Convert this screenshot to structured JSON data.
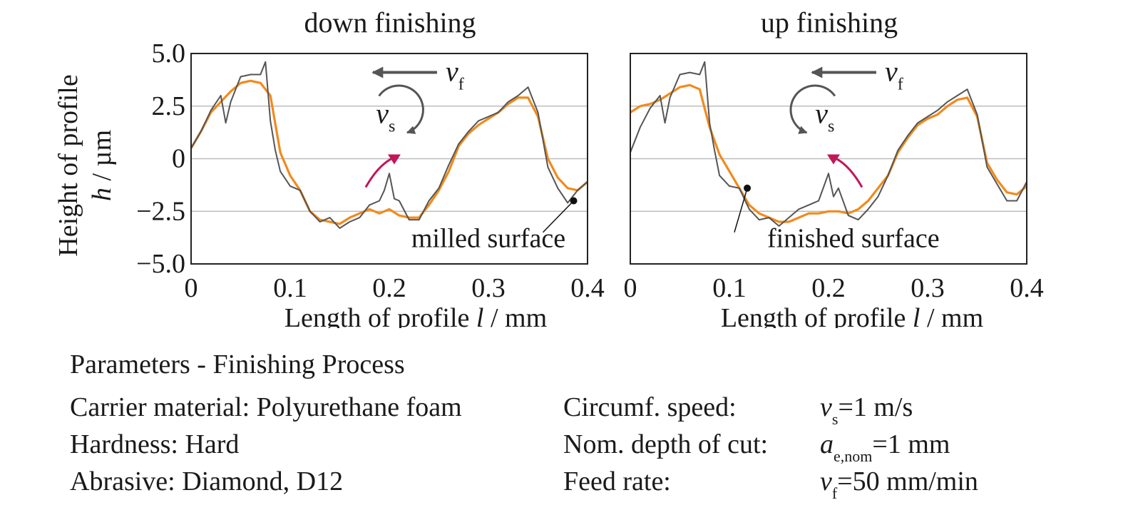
{
  "chart_data": [
    {
      "type": "line",
      "title": "down finishing",
      "xlabel": "Length of profile",
      "xlabel_symbol": "l",
      "xlabel_unit": "/ mm",
      "ylabel_line1": "Height of profile",
      "ylabel_symbol": "h",
      "ylabel_unit": "/ µm",
      "xlim": [
        0,
        0.4
      ],
      "ylim": [
        -5.0,
        5.0
      ],
      "xticks": [
        "0",
        "0.1",
        "0.2",
        "0.3",
        "0.4"
      ],
      "yticks": [
        "5.0",
        "2.5",
        "0",
        "−2.5",
        "−5.0"
      ],
      "grid": "horizontal",
      "feed_symbol": "v",
      "feed_sub": "f",
      "speed_symbol": "v",
      "speed_sub": "s",
      "rotation": "clockwise",
      "annotation": "milled surface",
      "annotation_point": [
        0.386,
        -2.0
      ],
      "series": [
        {
          "color": "#555555",
          "x": [
            0,
            0.01,
            0.02,
            0.03,
            0.035,
            0.04,
            0.05,
            0.06,
            0.07,
            0.075,
            0.08,
            0.085,
            0.09,
            0.1,
            0.11,
            0.12,
            0.13,
            0.14,
            0.15,
            0.16,
            0.17,
            0.18,
            0.19,
            0.195,
            0.2,
            0.205,
            0.21,
            0.22,
            0.23,
            0.24,
            0.25,
            0.26,
            0.27,
            0.28,
            0.29,
            0.3,
            0.31,
            0.32,
            0.33,
            0.34,
            0.35,
            0.36,
            0.37,
            0.38,
            0.39,
            0.4
          ],
          "y": [
            0.5,
            1.3,
            2.3,
            3.0,
            1.7,
            2.7,
            3.9,
            4.0,
            4.0,
            4.6,
            1.8,
            0.4,
            -0.6,
            -1.3,
            -1.5,
            -2.5,
            -3.0,
            -2.8,
            -3.3,
            -3.0,
            -2.8,
            -2.2,
            -2.0,
            -1.5,
            -0.7,
            -1.9,
            -2.0,
            -2.9,
            -2.9,
            -2.0,
            -1.4,
            -0.3,
            0.7,
            1.3,
            1.8,
            2.0,
            2.2,
            2.7,
            3.0,
            3.4,
            2.2,
            -0.4,
            -1.4,
            -2.1,
            -1.5,
            -1.1
          ]
        },
        {
          "color": "#f28a1c",
          "x": [
            0,
            0.01,
            0.02,
            0.03,
            0.04,
            0.05,
            0.06,
            0.07,
            0.08,
            0.09,
            0.1,
            0.11,
            0.12,
            0.13,
            0.14,
            0.15,
            0.16,
            0.17,
            0.18,
            0.19,
            0.2,
            0.21,
            0.22,
            0.23,
            0.24,
            0.25,
            0.26,
            0.27,
            0.28,
            0.29,
            0.3,
            0.31,
            0.32,
            0.33,
            0.34,
            0.35,
            0.36,
            0.37,
            0.38,
            0.39,
            0.4
          ],
          "y": [
            0.5,
            1.3,
            2.2,
            2.7,
            3.2,
            3.6,
            3.7,
            3.6,
            3.0,
            0.3,
            -0.8,
            -1.5,
            -2.5,
            -2.9,
            -3.0,
            -3.1,
            -2.8,
            -2.6,
            -2.4,
            -2.6,
            -2.4,
            -2.7,
            -2.8,
            -2.8,
            -2.2,
            -1.5,
            -0.6,
            0.6,
            1.2,
            1.6,
            1.9,
            2.2,
            2.6,
            2.9,
            2.9,
            2.0,
            0.0,
            -0.9,
            -1.4,
            -1.5,
            -1.1
          ]
        }
      ]
    },
    {
      "type": "line",
      "title": "up finishing",
      "xlabel": "Length of profile",
      "xlabel_symbol": "l",
      "xlabel_unit": "/ mm",
      "xlim": [
        0,
        0.4
      ],
      "ylim": [
        -5.0,
        5.0
      ],
      "xticks": [
        "0",
        "0.1",
        "0.2",
        "0.3",
        "0.4"
      ],
      "grid": "horizontal",
      "feed_symbol": "v",
      "feed_sub": "f",
      "speed_symbol": "v",
      "speed_sub": "s",
      "rotation": "counter-clockwise",
      "annotation": "finished surface",
      "annotation_point": [
        0.118,
        -1.4
      ],
      "series": [
        {
          "color": "#555555",
          "x": [
            0,
            0.01,
            0.02,
            0.03,
            0.035,
            0.04,
            0.05,
            0.06,
            0.07,
            0.075,
            0.08,
            0.085,
            0.09,
            0.1,
            0.11,
            0.12,
            0.13,
            0.14,
            0.15,
            0.16,
            0.17,
            0.18,
            0.19,
            0.2,
            0.205,
            0.21,
            0.22,
            0.23,
            0.24,
            0.25,
            0.26,
            0.27,
            0.28,
            0.29,
            0.3,
            0.31,
            0.32,
            0.33,
            0.34,
            0.35,
            0.36,
            0.37,
            0.38,
            0.39,
            0.4
          ],
          "y": [
            0.3,
            1.5,
            2.4,
            3.0,
            1.7,
            2.9,
            4.0,
            4.1,
            4.0,
            4.6,
            1.7,
            0.4,
            -0.8,
            -1.3,
            -1.4,
            -2.4,
            -2.9,
            -2.8,
            -3.2,
            -2.8,
            -2.4,
            -2.2,
            -2.0,
            -0.7,
            -1.8,
            -1.4,
            -2.7,
            -2.9,
            -2.4,
            -1.8,
            -0.8,
            0.4,
            1.1,
            1.7,
            2.0,
            2.3,
            2.7,
            3.0,
            3.3,
            2.1,
            -0.4,
            -1.2,
            -2.0,
            -2.0,
            -1.1
          ]
        },
        {
          "color": "#f28a1c",
          "x": [
            0,
            0.01,
            0.02,
            0.03,
            0.04,
            0.05,
            0.06,
            0.07,
            0.08,
            0.09,
            0.1,
            0.11,
            0.12,
            0.13,
            0.14,
            0.15,
            0.16,
            0.17,
            0.18,
            0.19,
            0.2,
            0.21,
            0.22,
            0.23,
            0.24,
            0.25,
            0.26,
            0.27,
            0.28,
            0.29,
            0.3,
            0.31,
            0.32,
            0.33,
            0.34,
            0.35,
            0.36,
            0.37,
            0.38,
            0.39,
            0.4
          ],
          "y": [
            2.2,
            2.5,
            2.6,
            2.8,
            3.1,
            3.4,
            3.5,
            3.3,
            1.5,
            0.2,
            -0.6,
            -1.4,
            -2.2,
            -2.6,
            -2.8,
            -3.0,
            -3.0,
            -2.8,
            -2.6,
            -2.6,
            -2.5,
            -2.5,
            -2.6,
            -2.4,
            -2.0,
            -1.4,
            -0.8,
            0.3,
            1.0,
            1.6,
            1.9,
            2.1,
            2.5,
            2.8,
            2.9,
            2.0,
            -0.2,
            -1.0,
            -1.6,
            -1.7,
            -1.3
          ]
        }
      ]
    }
  ],
  "parameters": {
    "heading": "Parameters - Finishing Process",
    "carrier": "Carrier material: Polyurethane foam",
    "hardness": "Hardness: Hard",
    "abrasive": "Abrasive: Diamond, D12",
    "speed_label": "Circumf. speed:",
    "speed_symbol": "v",
    "speed_sub": "s",
    "speed_value": "=1 m/s",
    "depth_label": "Nom. depth of cut:",
    "depth_symbol": "a",
    "depth_sub": "e,nom",
    "depth_value": "=1 mm",
    "feed_label": "Feed rate:",
    "feed_symbol": "v",
    "feed_sub": "f",
    "feed_value": "=50 mm/min"
  },
  "colors": {
    "measured": "#555555",
    "finished": "#f28a1c",
    "contact_arrow": "#c0185a",
    "grid": "#bdbdbd",
    "frame": "#222222",
    "motion_arrow": "#555555"
  }
}
